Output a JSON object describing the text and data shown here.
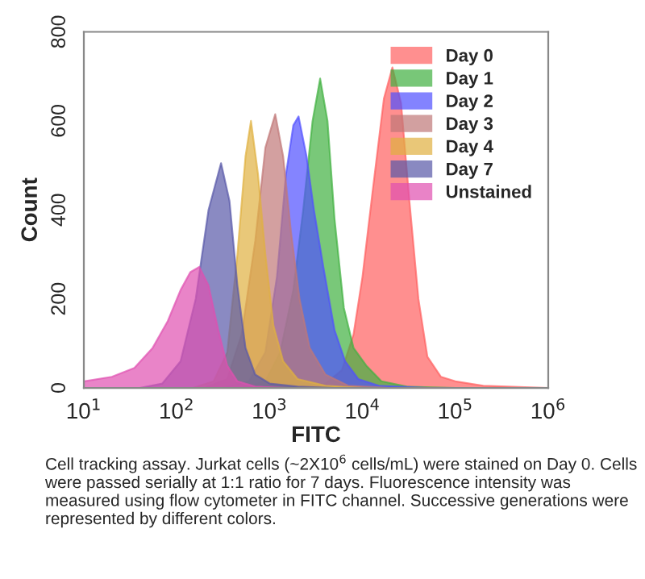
{
  "chart_data": {
    "type": "area",
    "xlabel": "FITC",
    "ylabel": "Count",
    "log": "x",
    "xlim": [
      10,
      1000000
    ],
    "ylim": [
      0,
      800
    ],
    "xticks": [
      {
        "value": 10,
        "label": "10$^{1}$"
      },
      {
        "value": 100,
        "label": "10$^{2}$"
      },
      {
        "value": 1000,
        "label": "10$^{3}$"
      },
      {
        "value": 10000,
        "label": "10$^{4}$"
      },
      {
        "value": 100000,
        "label": "10$^{5}$"
      },
      {
        "value": 1000000,
        "label": "10$^{6}$"
      }
    ],
    "yticks": [
      0,
      200,
      400,
      600,
      800
    ],
    "grid": false,
    "legend": "top right",
    "series": [
      {
        "name": "Day 0",
        "color": "#ff6060",
        "x": [
          2000,
          4000,
          6000,
          8000,
          10000,
          13000,
          17000,
          21000,
          26000,
          32000,
          40000,
          50000,
          70000,
          100000,
          200000,
          1000000
        ],
        "values": [
          0,
          10,
          40,
          120,
          250,
          450,
          650,
          720,
          640,
          420,
          200,
          70,
          25,
          15,
          5,
          0
        ]
      },
      {
        "name": "Day 1",
        "color": "#40b040",
        "x": [
          500,
          900,
          1300,
          1800,
          2300,
          2900,
          3500,
          4200,
          5000,
          6300,
          8000,
          11000,
          16000,
          30000,
          100000
        ],
        "values": [
          0,
          15,
          80,
          220,
          400,
          600,
          695,
          600,
          380,
          180,
          90,
          50,
          15,
          3,
          0
        ]
      },
      {
        "name": "Day 2",
        "color": "#5050ff",
        "x": [
          300,
          600,
          900,
          1200,
          1500,
          1800,
          2050,
          2500,
          3000,
          3800,
          5000,
          6500,
          9000,
          15000,
          50000
        ],
        "values": [
          0,
          15,
          80,
          250,
          480,
          590,
          610,
          520,
          400,
          270,
          130,
          60,
          20,
          5,
          0
        ]
      },
      {
        "name": "Day 3",
        "color": "#c07878",
        "x": [
          200,
          350,
          500,
          700,
          900,
          1150,
          1400,
          1700,
          2100,
          2700,
          4000,
          7000,
          20000
        ],
        "values": [
          0,
          20,
          120,
          330,
          540,
          615,
          520,
          350,
          200,
          90,
          30,
          5,
          0
        ]
      },
      {
        "name": "Day 4",
        "color": "#e0b040",
        "x": [
          150,
          250,
          350,
          450,
          550,
          630,
          750,
          900,
          1100,
          1400,
          2000,
          4000,
          10000
        ],
        "values": [
          0,
          15,
          80,
          300,
          520,
          600,
          480,
          300,
          140,
          60,
          20,
          5,
          0
        ]
      },
      {
        "name": "Day 7",
        "color": "#5858a8",
        "x": [
          40,
          70,
          110,
          160,
          220,
          300,
          370,
          450,
          550,
          700,
          1000,
          2000,
          5000
        ],
        "values": [
          0,
          10,
          60,
          200,
          400,
          505,
          420,
          230,
          90,
          30,
          10,
          3,
          0
        ]
      },
      {
        "name": "Unstained",
        "color": "#e050b0",
        "x": [
          10,
          20,
          35,
          55,
          80,
          110,
          140,
          175,
          220,
          280,
          350,
          450,
          700,
          1500
        ],
        "values": [
          15,
          25,
          45,
          90,
          150,
          220,
          260,
          272,
          230,
          130,
          50,
          15,
          3,
          0
        ]
      }
    ],
    "annotations": [
      "Cell tracking assay. Jurkat cells (~2X10$^{6}$ cells/mL) were stained on Day 0. Cells were passed serially at 1:1 ratio for 7 days. Fluorescence intensity was measured using flow cytometer in FITC channel. Successive generations were represented by different colors."
    ]
  }
}
